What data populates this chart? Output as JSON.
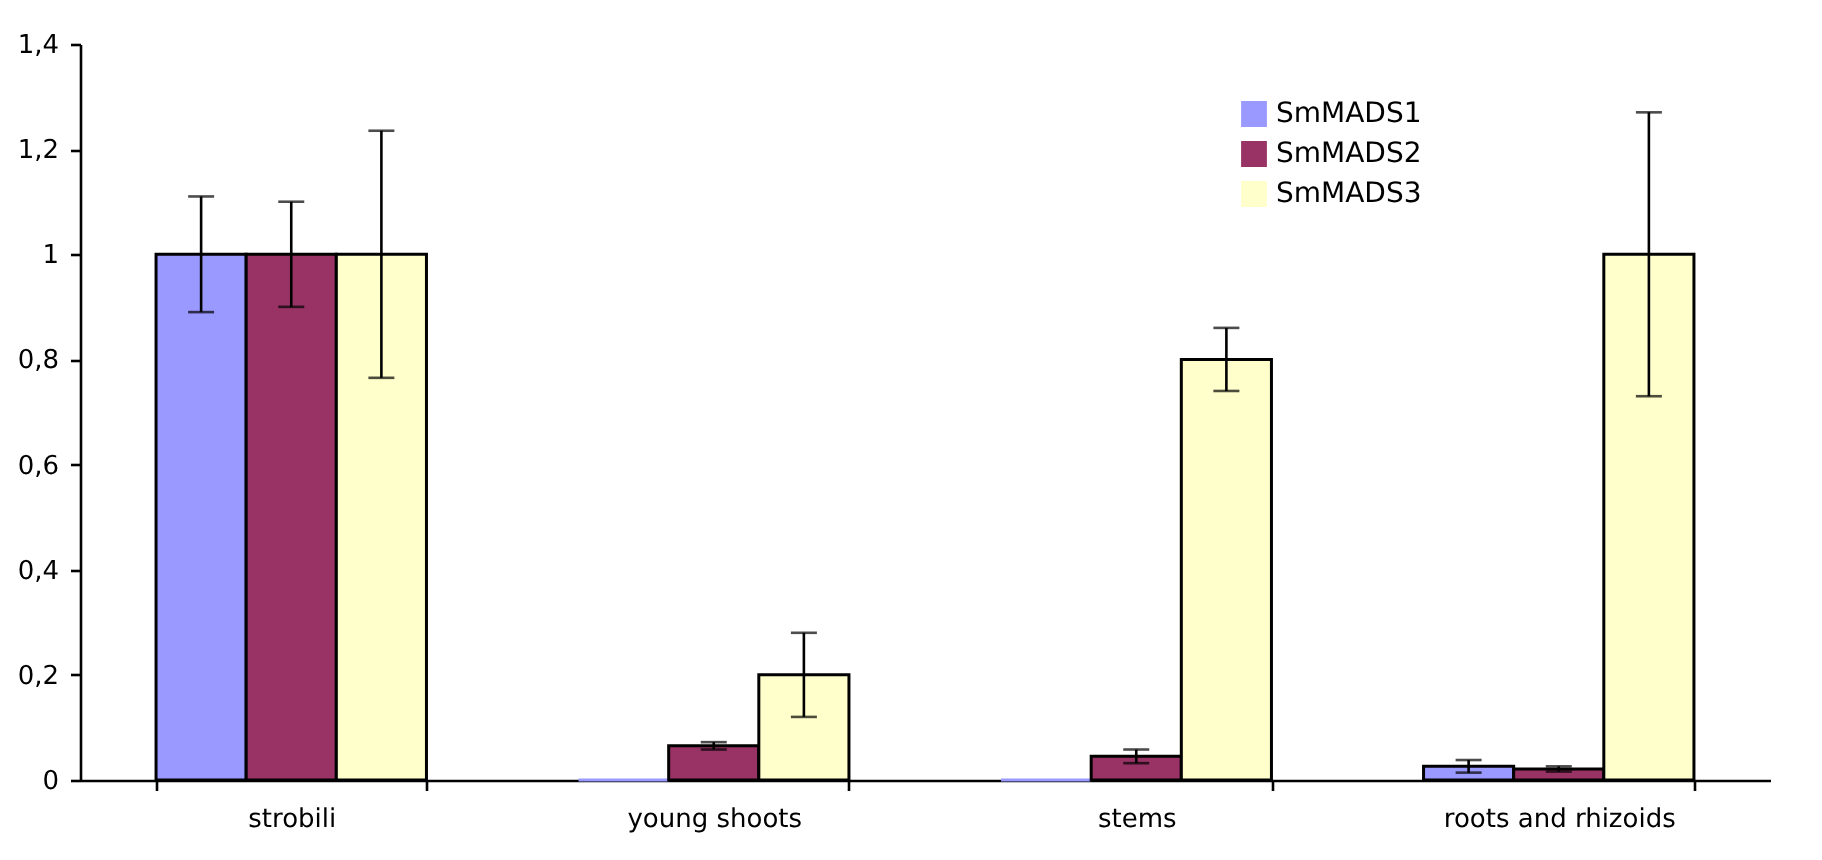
{
  "chart_data": {
    "type": "bar",
    "categories": [
      "strobili",
      "young shoots",
      "stems",
      "roots and rhizoids"
    ],
    "series": [
      {
        "name": "SmMADS1",
        "color": "#9999ff",
        "values": [
          1,
          0,
          0,
          0.026
        ],
        "errors": [
          0.11,
          null,
          null,
          0.012
        ]
      },
      {
        "name": "SmMADS2",
        "color": "#993366",
        "values": [
          1,
          0.065,
          0.045,
          0.021
        ],
        "errors": [
          0.1,
          0.007,
          0.013,
          0.005
        ]
      },
      {
        "name": "SmMADS3",
        "color": "#ffffcc",
        "values": [
          1,
          0.2,
          0.8,
          1
        ],
        "errors": [
          0.235,
          0.08,
          0.06,
          0.27
        ]
      }
    ],
    "ylim": [
      0,
      1.4
    ],
    "yticks": [
      0,
      {
        "value": 0.2,
        "label": "0,2"
      },
      {
        "value": 0.4,
        "label": "0,4"
      },
      {
        "value": 0.6,
        "label": "0,6"
      },
      {
        "value": 0.8,
        "label": "0,8"
      },
      1,
      {
        "value": 1.2,
        "label": "1,2"
      },
      {
        "value": 1.4,
        "label": "1,4"
      }
    ],
    "grid": false,
    "legend": "top right"
  }
}
